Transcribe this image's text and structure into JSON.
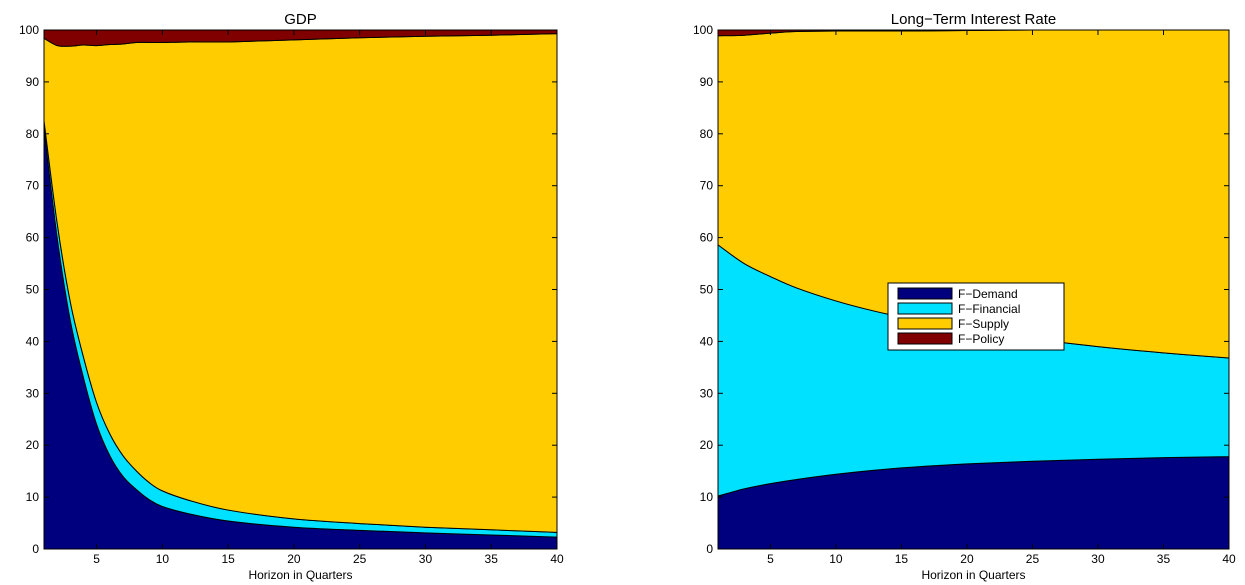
{
  "chart_data": [
    {
      "type": "area",
      "stacked": true,
      "title": "GDP",
      "xlabel": "Horizon in Quarters",
      "ylabel": "",
      "xlim": [
        1,
        40
      ],
      "ylim": [
        0,
        100
      ],
      "xticks": [
        5,
        10,
        15,
        20,
        25,
        30,
        35,
        40
      ],
      "yticks": [
        0,
        10,
        20,
        30,
        40,
        50,
        60,
        70,
        80,
        90,
        100
      ],
      "grid": false,
      "legend": false,
      "x": [
        1,
        2,
        3,
        4,
        5,
        6,
        7,
        8,
        9,
        10,
        12,
        15,
        20,
        25,
        30,
        35,
        40
      ],
      "series": [
        {
          "name": "F-Demand",
          "color": "#00007f",
          "values": [
            81,
            60,
            44,
            33,
            24,
            18,
            14,
            11.5,
            9.5,
            8.2,
            6.8,
            5.4,
            4.2,
            3.6,
            3.1,
            2.7,
            2.3
          ]
        },
        {
          "name": "F-Financial",
          "color": "#00e0ff",
          "values": [
            1.5,
            2.8,
            3.6,
            4.0,
            4.2,
            4.2,
            4.0,
            3.6,
            3.3,
            3.0,
            2.6,
            2.1,
            1.6,
            1.3,
            1.1,
            1.0,
            0.9
          ]
        },
        {
          "name": "F-Supply",
          "color": "#ffcc00",
          "values": [
            15.9,
            34.2,
            49.3,
            60.1,
            68.8,
            75.0,
            79.3,
            82.5,
            84.8,
            86.4,
            88.3,
            90.2,
            92.3,
            93.6,
            94.6,
            95.3,
            96.1
          ]
        },
        {
          "name": "F-Policy",
          "color": "#800000",
          "values": [
            1.6,
            3.0,
            3.1,
            2.9,
            3.0,
            2.8,
            2.7,
            2.4,
            2.4,
            2.4,
            2.3,
            2.3,
            1.9,
            1.5,
            1.2,
            1.0,
            0.7
          ]
        }
      ]
    },
    {
      "type": "area",
      "stacked": true,
      "title": "Long−Term Interest Rate",
      "xlabel": "Horizon in Quarters",
      "ylabel": "",
      "xlim": [
        1,
        40
      ],
      "ylim": [
        0,
        100
      ],
      "xticks": [
        5,
        10,
        15,
        20,
        25,
        30,
        35,
        40
      ],
      "yticks": [
        0,
        10,
        20,
        30,
        40,
        50,
        60,
        70,
        80,
        90,
        100
      ],
      "grid": false,
      "legend": true,
      "legend_position": "center-left",
      "x": [
        1,
        3,
        5,
        7,
        10,
        13,
        16,
        20,
        25,
        30,
        35,
        40
      ],
      "series": [
        {
          "name": "F-Demand",
          "color": "#00007f",
          "values": [
            10.2,
            11.6,
            12.6,
            13.4,
            14.4,
            15.2,
            15.8,
            16.4,
            16.9,
            17.3,
            17.6,
            17.8
          ]
        },
        {
          "name": "F-Financial",
          "color": "#00e0ff",
          "values": [
            48.4,
            43.4,
            39.9,
            36.9,
            33.4,
            30.6,
            28.4,
            26.1,
            23.6,
            21.7,
            20.2,
            19.0
          ]
        },
        {
          "name": "F-Supply",
          "color": "#ffcc00",
          "values": [
            40.3,
            44.0,
            46.9,
            49.4,
            52.0,
            54.0,
            55.6,
            57.4,
            59.5,
            61.0,
            62.2,
            63.2
          ]
        },
        {
          "name": "F-Policy",
          "color": "#800000",
          "values": [
            1.1,
            1.0,
            0.6,
            0.3,
            0.2,
            0.2,
            0.2,
            0.1,
            0.0,
            0.0,
            0.0,
            0.0
          ]
        }
      ]
    }
  ]
}
